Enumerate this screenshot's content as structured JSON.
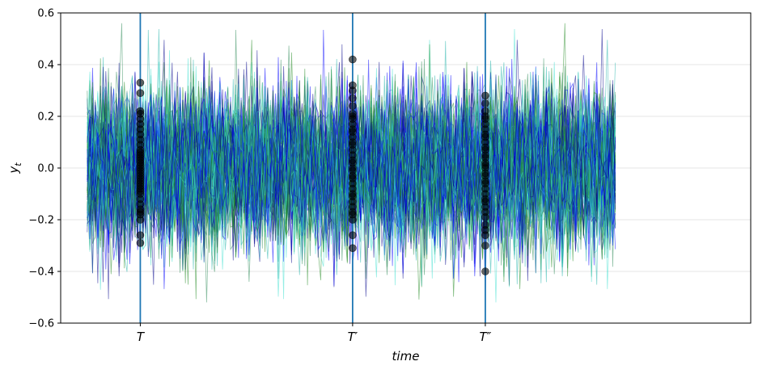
{
  "chart_data": {
    "type": "line",
    "title": "",
    "xlabel": "time",
    "ylabel": "y_t",
    "ylim": [
      -0.6,
      0.6
    ],
    "xlim": [
      -10,
      250
    ],
    "yticks": [
      -0.6,
      -0.4,
      -0.2,
      0.0,
      0.2,
      0.4,
      0.6
    ],
    "ytick_labels": [
      "−0.6",
      "−0.4",
      "−0.2",
      "0.0",
      "0.2",
      "0.4",
      "0.6"
    ],
    "grid": "horizontal",
    "legend": "none",
    "n_paths": 80,
    "n_steps": 200,
    "path_std": 0.15,
    "path_colors": [
      "#00008B",
      "#0000FF",
      "#228B22",
      "#20B2AA",
      "#40E0D0",
      "#2E8B57"
    ],
    "marker_color": "#000000",
    "vline_color": "#1f77b4",
    "xticks": [
      {
        "x": 20,
        "label": "T"
      },
      {
        "x": 100,
        "label": "T′"
      },
      {
        "x": 150,
        "label": "T″"
      }
    ],
    "snapshot_values": [
      [
        0.33,
        0.29,
        0.22,
        0.21,
        0.19,
        0.17,
        0.15,
        0.13,
        0.11,
        0.09,
        0.07,
        0.06,
        0.05,
        0.04,
        0.03,
        0.02,
        0.01,
        0.0,
        -0.01,
        -0.02,
        -0.03,
        -0.04,
        -0.05,
        -0.06,
        -0.07,
        -0.08,
        -0.09,
        -0.1,
        -0.12,
        -0.14,
        -0.16,
        -0.17,
        -0.18,
        -0.2,
        -0.26,
        -0.29
      ],
      [
        0.42,
        0.32,
        0.3,
        0.27,
        0.24,
        0.21,
        0.2,
        0.19,
        0.17,
        0.15,
        0.14,
        0.12,
        0.1,
        0.09,
        0.07,
        0.05,
        0.03,
        0.02,
        0.0,
        -0.01,
        -0.03,
        -0.04,
        -0.06,
        -0.08,
        -0.1,
        -0.11,
        -0.13,
        -0.15,
        -0.17,
        -0.18,
        -0.2,
        -0.26,
        -0.31
      ],
      [
        0.28,
        0.25,
        0.22,
        0.2,
        0.19,
        0.17,
        0.15,
        0.13,
        0.12,
        0.1,
        0.08,
        0.07,
        0.05,
        0.04,
        0.02,
        0.01,
        0.0,
        -0.02,
        -0.03,
        -0.05,
        -0.06,
        -0.08,
        -0.1,
        -0.12,
        -0.13,
        -0.15,
        -0.17,
        -0.19,
        -0.22,
        -0.24,
        -0.26,
        -0.3,
        -0.4
      ]
    ]
  }
}
